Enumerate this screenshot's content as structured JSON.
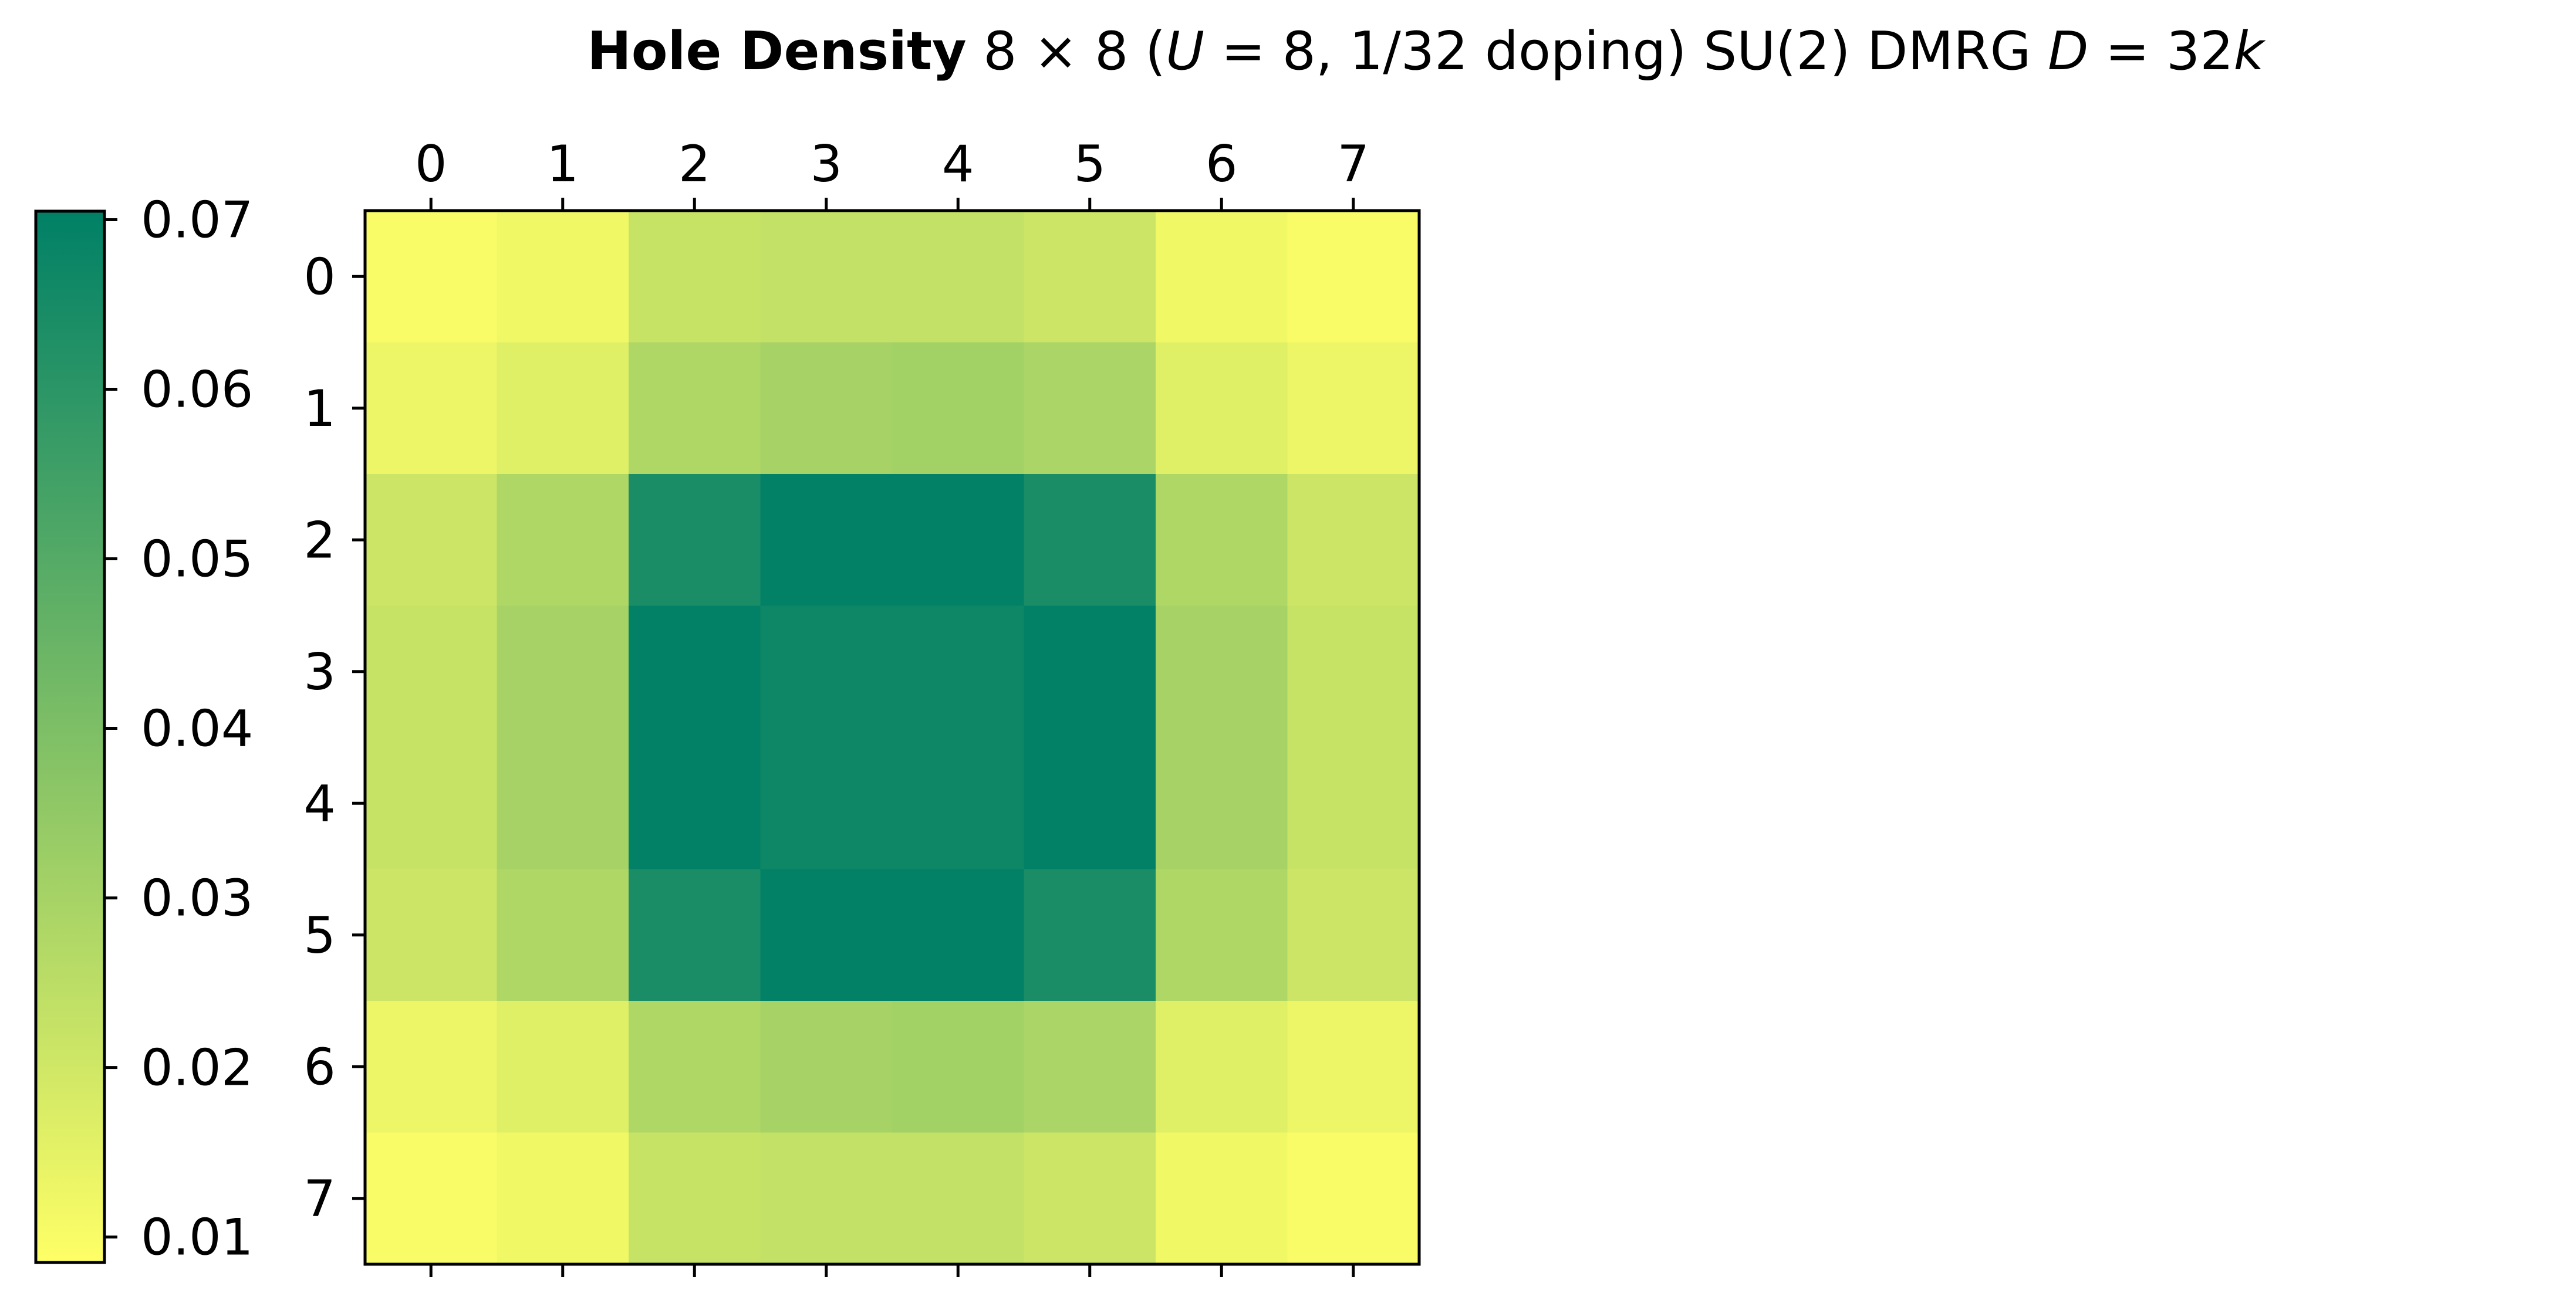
{
  "chart_data": {
    "type": "heatmap",
    "title": {
      "bold": "Hole Density",
      "size": "8 × 8 (",
      "u_var": "U",
      "params": " = 8, 1/32 doping) SU(2) DMRG ",
      "d_var": "D",
      "d_eq": " = 32",
      "k_var": "k"
    },
    "x_ticks": [
      "0",
      "1",
      "2",
      "3",
      "4",
      "5",
      "6",
      "7"
    ],
    "y_ticks": [
      "0",
      "1",
      "2",
      "3",
      "4",
      "5",
      "6",
      "7"
    ],
    "x_axis_position": "top",
    "colorbar": {
      "position": "left",
      "min": 0.0085,
      "max": 0.0705,
      "ticks": [
        "0.01",
        "0.02",
        "0.03",
        "0.04",
        "0.05",
        "0.06",
        "0.07"
      ],
      "colormap": "summer_r",
      "color_low": "#ffff66",
      "color_high": "#008066"
    },
    "values": [
      [
        0.01,
        0.012,
        0.022,
        0.023,
        0.023,
        0.021,
        0.012,
        0.01
      ],
      [
        0.013,
        0.016,
        0.028,
        0.03,
        0.031,
        0.029,
        0.016,
        0.013
      ],
      [
        0.021,
        0.028,
        0.064,
        0.07,
        0.07,
        0.064,
        0.028,
        0.021
      ],
      [
        0.022,
        0.03,
        0.07,
        0.067,
        0.067,
        0.07,
        0.03,
        0.022
      ],
      [
        0.022,
        0.03,
        0.07,
        0.067,
        0.067,
        0.07,
        0.03,
        0.022
      ],
      [
        0.021,
        0.028,
        0.064,
        0.07,
        0.07,
        0.064,
        0.028,
        0.021
      ],
      [
        0.013,
        0.016,
        0.028,
        0.03,
        0.031,
        0.029,
        0.016,
        0.013
      ],
      [
        0.01,
        0.012,
        0.022,
        0.023,
        0.023,
        0.021,
        0.012,
        0.01
      ]
    ]
  }
}
